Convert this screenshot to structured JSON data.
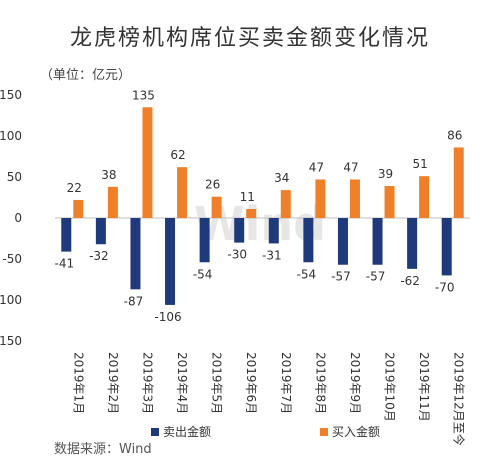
{
  "chart_data": {
    "type": "bar",
    "title": "龙虎榜机构席位买卖金额变化情况",
    "unit": "（单位：亿元）",
    "source": "数据来源：Wind",
    "watermark": "Wind",
    "categories": [
      "2019年1月",
      "2019年2月",
      "2019年3月",
      "2019年4月",
      "2019年5月",
      "2019年6月",
      "2019年7月",
      "2019年8月",
      "2019年9月",
      "2019年10月",
      "2019年11月",
      "2019年12月至今"
    ],
    "series": [
      {
        "name": "卖出金额",
        "color": "#1f3a7a",
        "values": [
          -41,
          -32,
          -87,
          -106,
          -54,
          -30,
          -31,
          -54,
          -57,
          -57,
          -62,
          -70
        ]
      },
      {
        "name": "买入金额",
        "color": "#f07f2a",
        "values": [
          22,
          38,
          135,
          62,
          26,
          11,
          34,
          47,
          47,
          39,
          51,
          86
        ]
      }
    ],
    "ylim": [
      -150,
      150
    ],
    "yticks": [
      150,
      100,
      50,
      0,
      -50,
      -100,
      -150
    ],
    "grid": false,
    "legend": "bottom"
  }
}
